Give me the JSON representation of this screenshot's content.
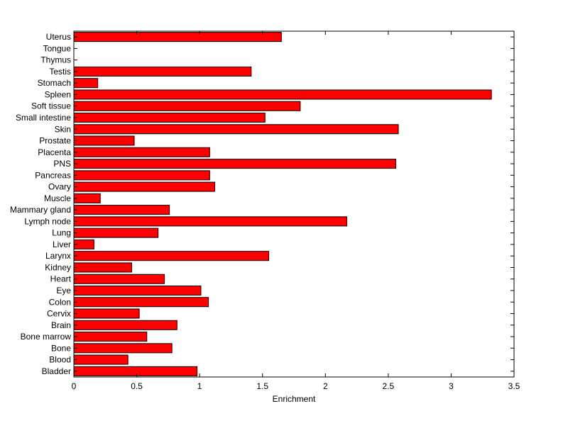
{
  "chart_data": {
    "type": "bar",
    "orientation": "horizontal",
    "title": "",
    "xlabel": "Enrichment",
    "ylabel": "",
    "xlim": [
      0,
      3.5
    ],
    "xticks": [
      "0",
      "0.5",
      "1",
      "1.5",
      "2",
      "2.5",
      "3",
      "3.5"
    ],
    "grid": false,
    "bar_color": "#ff0000",
    "bar_edge_color": "#000000",
    "categories": [
      "Bladder",
      "Blood",
      "Bone",
      "Bone marrow",
      "Brain",
      "Cervix",
      "Colon",
      "Eye",
      "Heart",
      "Kidney",
      "Larynx",
      "Liver",
      "Lung",
      "Lymph node",
      "Mammary gland",
      "Muscle",
      "Ovary",
      "Pancreas",
      "PNS",
      "Placenta",
      "Prostate",
      "Skin",
      "Small intestine",
      "Soft tissue",
      "Spleen",
      "Stomach",
      "Testis",
      "Thymus",
      "Tongue",
      "Uterus"
    ],
    "values": [
      0.98,
      0.43,
      0.78,
      0.58,
      0.82,
      0.52,
      1.07,
      1.01,
      0.72,
      0.46,
      1.55,
      0.16,
      0.67,
      2.17,
      0.76,
      0.21,
      1.12,
      1.08,
      2.56,
      1.08,
      0.48,
      2.58,
      1.52,
      1.8,
      3.32,
      0.19,
      1.41,
      0,
      0,
      1.65
    ]
  }
}
